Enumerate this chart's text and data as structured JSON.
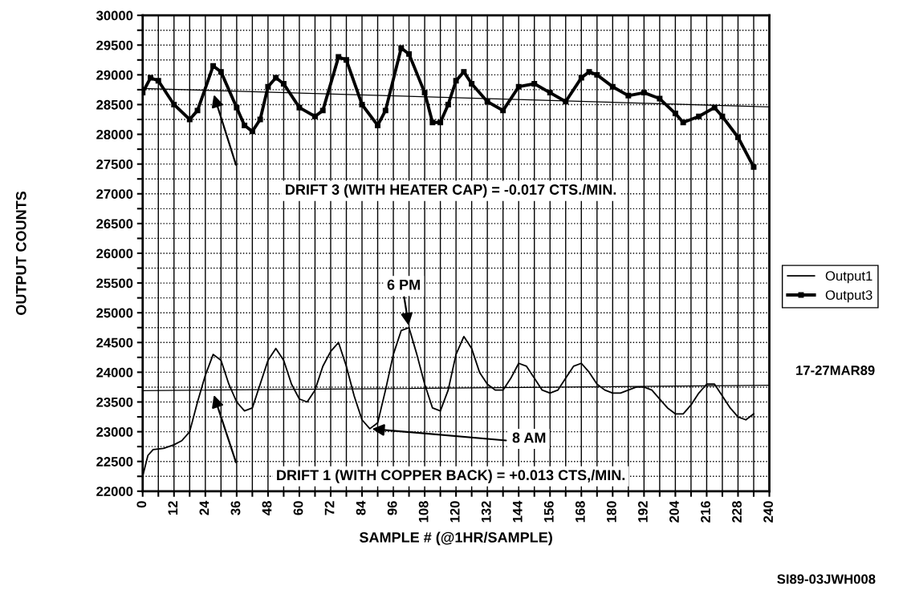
{
  "chart_data": {
    "type": "line",
    "xlabel": "SAMPLE # (@1HR/SAMPLE)",
    "ylabel": "OUTPUT COUNTS",
    "xlim": [
      0,
      240
    ],
    "xticks": [
      0,
      12,
      24,
      36,
      48,
      60,
      72,
      84,
      96,
      108,
      120,
      132,
      144,
      156,
      168,
      180,
      192,
      204,
      216,
      228,
      240
    ],
    "ylim": [
      22000,
      30000
    ],
    "yticks": [
      22000,
      22500,
      23000,
      23500,
      24000,
      24500,
      25000,
      25500,
      26000,
      26500,
      27000,
      27500,
      28000,
      28500,
      29000,
      29500,
      30000
    ],
    "grid": true,
    "legend": "right",
    "series": [
      {
        "name": "Output1",
        "color": "#000000",
        "marker": "none",
        "x": [
          0,
          2,
          4,
          8,
          12,
          15,
          18,
          21,
          24,
          27,
          30,
          33,
          36,
          39,
          42,
          45,
          48,
          51,
          54,
          57,
          60,
          63,
          66,
          69,
          72,
          75,
          78,
          81,
          84,
          87,
          90,
          93,
          96,
          99,
          102,
          105,
          108,
          111,
          114,
          117,
          120,
          123,
          126,
          129,
          132,
          135,
          138,
          141,
          144,
          147,
          150,
          153,
          156,
          159,
          162,
          165,
          168,
          171,
          174,
          177,
          180,
          183,
          186,
          189,
          192,
          195,
          198,
          201,
          204,
          207,
          210,
          213,
          216,
          219,
          222,
          225,
          228,
          231,
          234
        ],
        "values": [
          22250,
          22600,
          22700,
          22720,
          22780,
          22850,
          23000,
          23500,
          23950,
          24300,
          24200,
          23800,
          23500,
          23350,
          23400,
          23800,
          24200,
          24400,
          24200,
          23800,
          23550,
          23500,
          23700,
          24100,
          24350,
          24500,
          24100,
          23600,
          23200,
          23050,
          23150,
          23700,
          24300,
          24700,
          24750,
          24300,
          23800,
          23400,
          23350,
          23700,
          24300,
          24600,
          24400,
          24000,
          23800,
          23700,
          23700,
          23900,
          24150,
          24100,
          23900,
          23700,
          23650,
          23700,
          23900,
          24100,
          24150,
          24000,
          23800,
          23700,
          23650,
          23650,
          23700,
          23750,
          23750,
          23700,
          23550,
          23400,
          23300,
          23300,
          23450,
          23650,
          23800,
          23800,
          23600,
          23400,
          23250,
          23200,
          23300
        ]
      },
      {
        "name": "Output3",
        "color": "#000000",
        "marker": "square",
        "x": [
          0,
          3,
          6,
          12,
          18,
          21,
          27,
          30,
          36,
          39,
          42,
          45,
          48,
          51,
          54,
          60,
          66,
          69,
          75,
          78,
          84,
          90,
          93,
          99,
          102,
          108,
          111,
          114,
          117,
          120,
          123,
          126,
          132,
          138,
          144,
          150,
          156,
          162,
          168,
          171,
          174,
          180,
          186,
          192,
          198,
          204,
          207,
          213,
          219,
          222,
          228,
          234
        ],
        "values": [
          28700,
          28950,
          28900,
          28500,
          28250,
          28400,
          29150,
          29050,
          28450,
          28150,
          28050,
          28250,
          28800,
          28950,
          28850,
          28450,
          28300,
          28400,
          29300,
          29250,
          28500,
          28150,
          28400,
          29450,
          29350,
          28700,
          28200,
          28200,
          28500,
          28900,
          29050,
          28850,
          28550,
          28400,
          28800,
          28850,
          28700,
          28550,
          28950,
          29050,
          29000,
          28800,
          28650,
          28700,
          28600,
          28350,
          28200,
          28300,
          28450,
          28300,
          27950,
          27450
        ]
      },
      {
        "type": "line",
        "color": "#000000",
        "marker": "none",
        "x": [
          0,
          240
        ],
        "values": [
          28770,
          28460
        ]
      },
      {
        "type": "line",
        "color": "#000000",
        "marker": "none",
        "x": [
          0,
          240
        ],
        "values": [
          23690,
          23780
        ]
      }
    ],
    "annotations": [
      "DRIFT 3 (WITH HEATER CAP) = -0.017 CTS./MIN.",
      {
        "text": "6 PM",
        "x": 102,
        "y": 24750
      },
      {
        "text": "8 AM",
        "x": 87,
        "y": 23050
      },
      "DRIFT 1 (WITH COPPER BACK) = +0.013 CTS,/MIN.",
      "17-27MAR89",
      "SI89-03JWH008"
    ]
  }
}
